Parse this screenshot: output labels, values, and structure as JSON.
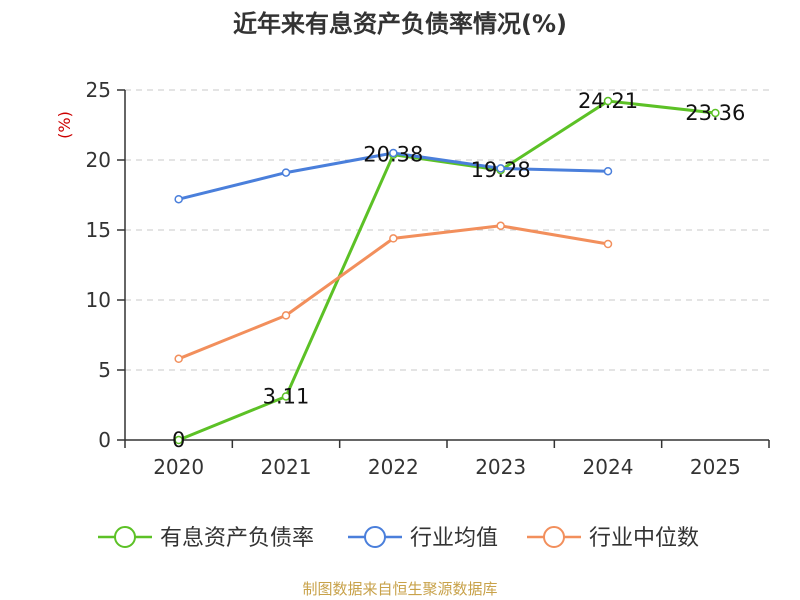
{
  "title": "近年来有息资产负债率情况(%)",
  "source": "制图数据来自恒生聚源数据库",
  "chart_data": {
    "type": "line",
    "title": "近年来有息资产负债率情况(%)",
    "ylabel": "(%)",
    "ylim": [
      0,
      25
    ],
    "yticks": [
      0,
      5,
      10,
      15,
      20,
      25
    ],
    "grid": true,
    "legend_position": "bottom",
    "categories": [
      "2020",
      "2021",
      "2022",
      "2023",
      "2024",
      "2025"
    ],
    "series": [
      {
        "name": "有息资产负债率",
        "color": "#5cc126",
        "values": [
          0,
          3.11,
          20.38,
          19.28,
          24.21,
          23.36
        ],
        "labels": [
          "0",
          "3.11",
          "20.38",
          "19.28",
          "24.21",
          "23.36"
        ]
      },
      {
        "name": "行业均值",
        "color": "#4a7fdb",
        "values": [
          17.2,
          19.1,
          20.5,
          19.4,
          19.2,
          null
        ]
      },
      {
        "name": "行业中位数",
        "color": "#f28f5c",
        "values": [
          5.8,
          8.9,
          14.4,
          15.3,
          14.0,
          null
        ]
      }
    ]
  }
}
